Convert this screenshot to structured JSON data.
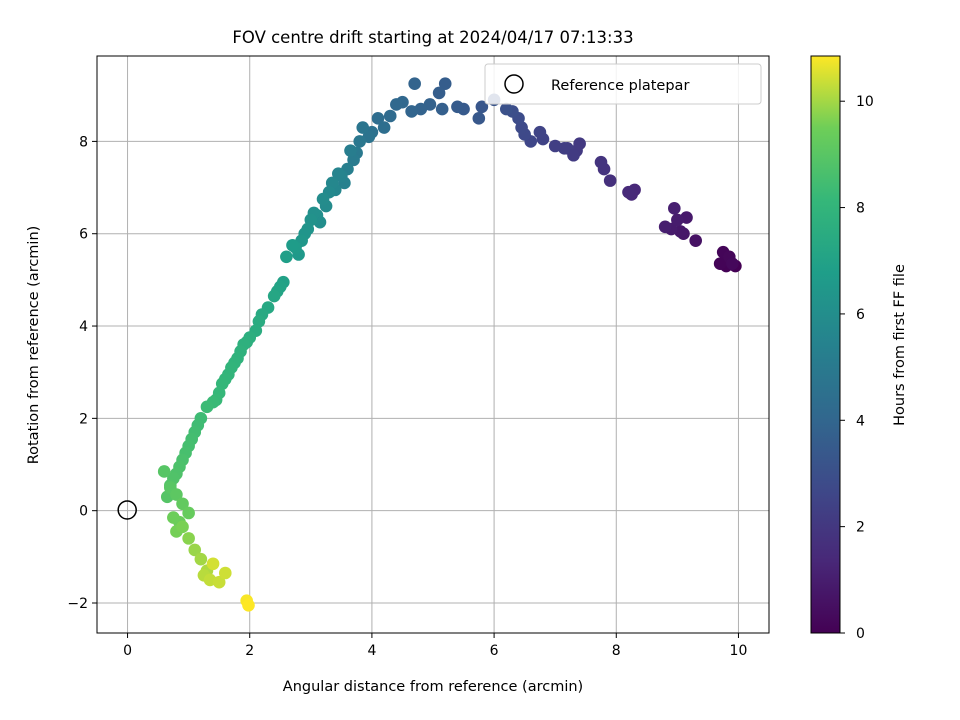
{
  "chart_data": {
    "type": "scatter",
    "title": "FOV centre drift starting at 2024/04/17 07:13:33",
    "xlabel": "Angular distance from reference (arcmin)",
    "ylabel": "Rotation from reference (arcmin)",
    "xlim": [
      -0.5,
      10.5
    ],
    "ylim": [
      -2.65,
      9.85
    ],
    "xticks": [
      0,
      2,
      4,
      6,
      8,
      10
    ],
    "yticks": [
      -2,
      0,
      2,
      4,
      6,
      8
    ],
    "grid": true,
    "legend": {
      "position": "top-right",
      "entries": [
        "Reference platepar"
      ]
    },
    "reference_point": {
      "x": 0,
      "y": 0,
      "label": "Reference platepar"
    },
    "colorbar": {
      "label": "Hours from first FF file",
      "range": [
        0,
        10.85
      ],
      "ticks": [
        0,
        2,
        4,
        6,
        8,
        10
      ],
      "colormap": "viridis"
    },
    "series": [
      {
        "color_by": "hours",
        "x": [
          9.95,
          9.8,
          9.7,
          9.75,
          9.85,
          9.9,
          9.3,
          9.1,
          9.05,
          8.9,
          9.15,
          9.0,
          8.8,
          8.95,
          8.3,
          8.25,
          8.2,
          7.9,
          7.8,
          7.75,
          7.4,
          7.35,
          7.2,
          7.3,
          7.15,
          7.0,
          6.8,
          6.75,
          6.6,
          6.5,
          6.45,
          6.4,
          6.3,
          6.2,
          6.0,
          5.8,
          5.75,
          5.5,
          5.4,
          5.2,
          5.1,
          5.15,
          4.95,
          4.8,
          4.7,
          4.65,
          4.5,
          4.4,
          4.3,
          4.1,
          4.2,
          4.0,
          3.95,
          3.85,
          3.8,
          3.75,
          3.7,
          3.65,
          3.6,
          3.55,
          3.5,
          3.45,
          3.4,
          3.35,
          3.3,
          3.25,
          3.2,
          3.15,
          3.1,
          3.05,
          3.0,
          2.95,
          2.9,
          2.85,
          2.8,
          2.75,
          2.7,
          2.6,
          2.55,
          2.5,
          2.45,
          2.4,
          2.3,
          2.2,
          2.15,
          2.1,
          2.0,
          1.95,
          1.9,
          1.85,
          1.8,
          1.75,
          1.7,
          1.65,
          1.6,
          1.55,
          1.5,
          1.45,
          1.4,
          1.3,
          1.2,
          1.15,
          1.1,
          1.05,
          1.0,
          0.95,
          0.9,
          0.85,
          0.8,
          0.75,
          0.7,
          0.65,
          0.6,
          0.7,
          0.8,
          0.9,
          1.0,
          0.85,
          0.75,
          0.8,
          0.9,
          1.0,
          1.1,
          1.2,
          1.3,
          1.25,
          1.35,
          1.5,
          1.6,
          1.4,
          1.95,
          1.98
        ],
        "y": [
          5.3,
          5.3,
          5.35,
          5.6,
          5.5,
          5.35,
          5.85,
          6.0,
          6.05,
          6.1,
          6.35,
          6.3,
          6.15,
          6.55,
          6.95,
          6.85,
          6.9,
          7.15,
          7.4,
          7.55,
          7.95,
          7.8,
          7.85,
          7.7,
          7.85,
          7.9,
          8.05,
          8.2,
          8.0,
          8.15,
          8.3,
          8.5,
          8.65,
          8.7,
          8.9,
          8.75,
          8.5,
          8.7,
          8.75,
          9.25,
          9.05,
          8.7,
          8.8,
          8.7,
          9.25,
          8.65,
          8.85,
          8.8,
          8.55,
          8.5,
          8.3,
          8.2,
          8.1,
          8.3,
          8.0,
          7.75,
          7.6,
          7.8,
          7.4,
          7.1,
          7.25,
          7.3,
          6.95,
          7.1,
          6.9,
          6.6,
          6.75,
          6.25,
          6.4,
          6.45,
          6.3,
          6.1,
          6.0,
          5.85,
          5.55,
          5.7,
          5.75,
          5.5,
          4.95,
          4.85,
          4.75,
          4.65,
          4.4,
          4.25,
          4.1,
          3.9,
          3.75,
          3.65,
          3.6,
          3.45,
          3.3,
          3.2,
          3.1,
          2.95,
          2.85,
          2.75,
          2.55,
          2.4,
          2.35,
          2.25,
          2.0,
          1.85,
          1.7,
          1.55,
          1.4,
          1.25,
          1.1,
          0.95,
          0.8,
          0.7,
          0.55,
          0.3,
          0.85,
          0.5,
          0.35,
          0.15,
          -0.05,
          -0.25,
          -0.15,
          -0.45,
          -0.35,
          -0.6,
          -0.85,
          -1.05,
          -1.3,
          -1.4,
          -1.5,
          -1.55,
          -1.35,
          -1.15,
          -1.95,
          -2.05
        ],
        "hours": [
          0.0,
          0.05,
          0.1,
          0.15,
          0.2,
          0.25,
          0.6,
          0.75,
          0.8,
          0.9,
          0.85,
          0.95,
          1.0,
          1.05,
          1.35,
          1.4,
          1.45,
          1.7,
          1.8,
          1.85,
          2.05,
          2.1,
          2.2,
          2.15,
          2.25,
          2.3,
          2.45,
          2.5,
          2.6,
          2.7,
          2.75,
          2.85,
          2.95,
          3.05,
          3.2,
          3.3,
          3.35,
          3.45,
          3.5,
          3.6,
          3.65,
          3.7,
          3.8,
          3.85,
          3.9,
          3.95,
          4.05,
          4.1,
          4.2,
          4.35,
          4.4,
          4.55,
          4.65,
          4.75,
          4.85,
          4.95,
          5.05,
          5.15,
          5.25,
          5.35,
          5.45,
          5.5,
          5.6,
          5.65,
          5.75,
          5.85,
          5.9,
          6.0,
          6.05,
          6.1,
          6.2,
          6.3,
          6.35,
          6.45,
          6.55,
          6.65,
          6.7,
          6.85,
          6.95,
          7.05,
          7.1,
          7.2,
          7.3,
          7.4,
          7.5,
          7.55,
          7.65,
          7.7,
          7.75,
          7.8,
          7.85,
          7.9,
          7.95,
          8.0,
          8.05,
          8.1,
          8.15,
          8.2,
          8.25,
          8.3,
          8.35,
          8.4,
          8.45,
          8.5,
          8.55,
          8.6,
          8.65,
          8.7,
          8.75,
          8.8,
          8.85,
          8.9,
          8.95,
          9.0,
          9.1,
          9.2,
          9.3,
          9.4,
          9.45,
          9.55,
          9.6,
          9.75,
          9.9,
          10.0,
          10.1,
          10.2,
          10.3,
          10.35,
          10.4,
          10.45,
          10.8,
          10.85
        ]
      }
    ]
  }
}
